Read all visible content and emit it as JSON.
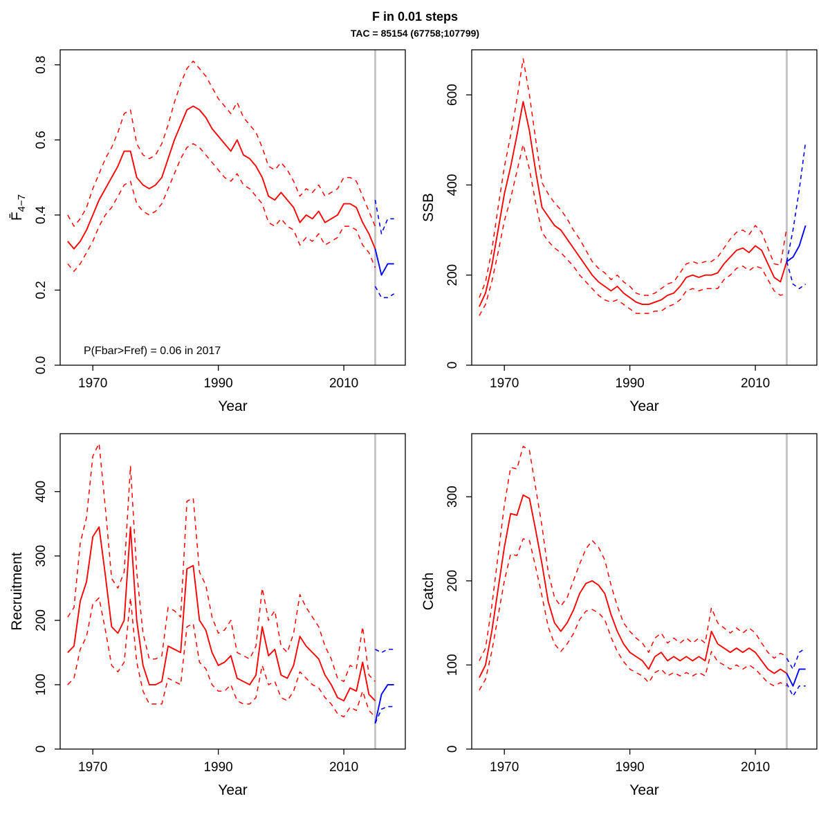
{
  "header": {
    "title": "F in 0.01 steps",
    "subtitle": "TAC = 85154 (67758;107799)"
  },
  "colors": {
    "estimate": "#ff0000",
    "forecast": "#0000ff",
    "vline": "#c6c6c6",
    "axis": "#000000"
  },
  "chart_data": [
    {
      "type": "line",
      "key": "fbar",
      "ylabel": "F̄",
      "ylabel_sub": "4−7",
      "xlabel": "Year",
      "xlim": [
        1964.8,
        2019.8
      ],
      "ylim": [
        0,
        0.84
      ],
      "xticks": [
        1970,
        1990,
        2010
      ],
      "yticks": [
        0.0,
        0.2,
        0.4,
        0.6,
        0.8
      ],
      "yticklabels": [
        "0.0",
        "0.2",
        "0.4",
        "0.6",
        "0.8"
      ],
      "vline": 2015,
      "annotation": "P(Fbar>Fref) = 0.06  in 2017",
      "years": [
        1966,
        1967,
        1968,
        1969,
        1970,
        1971,
        1972,
        1973,
        1974,
        1975,
        1976,
        1977,
        1978,
        1979,
        1980,
        1981,
        1982,
        1983,
        1984,
        1985,
        1986,
        1987,
        1988,
        1989,
        1990,
        1991,
        1992,
        1993,
        1994,
        1995,
        1996,
        1997,
        1998,
        1999,
        2000,
        2001,
        2002,
        2003,
        2004,
        2005,
        2006,
        2007,
        2008,
        2009,
        2010,
        2011,
        2012,
        2013,
        2014,
        2015
      ],
      "mid": [
        0.33,
        0.31,
        0.33,
        0.36,
        0.4,
        0.44,
        0.47,
        0.5,
        0.53,
        0.57,
        0.57,
        0.5,
        0.48,
        0.47,
        0.48,
        0.5,
        0.55,
        0.6,
        0.64,
        0.68,
        0.69,
        0.68,
        0.66,
        0.63,
        0.61,
        0.59,
        0.57,
        0.6,
        0.56,
        0.55,
        0.53,
        0.5,
        0.45,
        0.44,
        0.46,
        0.44,
        0.42,
        0.38,
        0.4,
        0.39,
        0.41,
        0.38,
        0.39,
        0.4,
        0.43,
        0.43,
        0.42,
        0.38,
        0.35,
        0.31
      ],
      "hi": [
        0.4,
        0.37,
        0.39,
        0.42,
        0.47,
        0.51,
        0.55,
        0.58,
        0.62,
        0.67,
        0.68,
        0.59,
        0.56,
        0.55,
        0.56,
        0.59,
        0.64,
        0.7,
        0.75,
        0.79,
        0.81,
        0.79,
        0.77,
        0.74,
        0.71,
        0.69,
        0.67,
        0.7,
        0.66,
        0.64,
        0.62,
        0.58,
        0.53,
        0.52,
        0.54,
        0.52,
        0.49,
        0.45,
        0.47,
        0.46,
        0.48,
        0.45,
        0.46,
        0.47,
        0.5,
        0.5,
        0.49,
        0.45,
        0.41,
        0.37
      ],
      "lo": [
        0.27,
        0.25,
        0.27,
        0.3,
        0.33,
        0.37,
        0.4,
        0.42,
        0.45,
        0.48,
        0.49,
        0.43,
        0.41,
        0.4,
        0.41,
        0.43,
        0.47,
        0.51,
        0.55,
        0.58,
        0.59,
        0.58,
        0.56,
        0.54,
        0.52,
        0.5,
        0.49,
        0.51,
        0.48,
        0.47,
        0.45,
        0.43,
        0.38,
        0.37,
        0.39,
        0.37,
        0.36,
        0.32,
        0.34,
        0.33,
        0.35,
        0.32,
        0.33,
        0.34,
        0.37,
        0.37,
        0.36,
        0.32,
        0.3,
        0.26
      ],
      "proj_years": [
        2015,
        2016,
        2017,
        2018
      ],
      "proj_mid": [
        0.31,
        0.24,
        0.27,
        0.27
      ],
      "proj_hi": [
        0.44,
        0.35,
        0.39,
        0.39
      ],
      "proj_lo": [
        0.21,
        0.18,
        0.18,
        0.19
      ]
    },
    {
      "type": "line",
      "key": "ssb",
      "ylabel": "SSB",
      "xlabel": "Year",
      "xlim": [
        1964.8,
        2019.8
      ],
      "ylim": [
        0,
        700
      ],
      "xticks": [
        1970,
        1990,
        2010
      ],
      "yticks": [
        0,
        200,
        400,
        600
      ],
      "yticklabels": [
        "0",
        "200",
        "400",
        "600"
      ],
      "vline": 2015,
      "annotation": "",
      "years": [
        1966,
        1967,
        1968,
        1969,
        1970,
        1971,
        1972,
        1973,
        1974,
        1975,
        1976,
        1977,
        1978,
        1979,
        1980,
        1981,
        1982,
        1983,
        1984,
        1985,
        1986,
        1987,
        1988,
        1989,
        1990,
        1991,
        1992,
        1993,
        1994,
        1995,
        1996,
        1997,
        1998,
        1999,
        2000,
        2001,
        2002,
        2003,
        2004,
        2005,
        2006,
        2007,
        2008,
        2009,
        2010,
        2011,
        2012,
        2013,
        2014,
        2015
      ],
      "mid": [
        130,
        160,
        220,
        300,
        380,
        440,
        510,
        585,
        520,
        430,
        350,
        330,
        310,
        300,
        280,
        260,
        240,
        220,
        200,
        185,
        175,
        165,
        175,
        160,
        150,
        140,
        135,
        135,
        140,
        145,
        155,
        160,
        175,
        195,
        200,
        195,
        200,
        200,
        205,
        225,
        240,
        255,
        260,
        250,
        265,
        255,
        225,
        195,
        185,
        230
      ],
      "hi": [
        150,
        185,
        255,
        350,
        440,
        510,
        590,
        680,
        600,
        500,
        405,
        380,
        360,
        345,
        325,
        300,
        280,
        255,
        230,
        215,
        205,
        190,
        200,
        185,
        175,
        160,
        155,
        155,
        160,
        170,
        180,
        185,
        205,
        225,
        230,
        225,
        230,
        230,
        240,
        260,
        280,
        295,
        300,
        290,
        310,
        295,
        260,
        225,
        222,
        305
      ],
      "lo": [
        110,
        135,
        185,
        250,
        320,
        370,
        430,
        490,
        435,
        360,
        295,
        275,
        260,
        250,
        235,
        220,
        200,
        185,
        170,
        155,
        145,
        140,
        145,
        135,
        125,
        115,
        115,
        115,
        120,
        120,
        130,
        135,
        145,
        165,
        170,
        165,
        170,
        170,
        170,
        190,
        200,
        215,
        220,
        210,
        220,
        215,
        190,
        165,
        155,
        160
      ],
      "proj_years": [
        2015,
        2016,
        2017,
        2018
      ],
      "proj_mid": [
        230,
        240,
        265,
        310
      ],
      "proj_hi": [
        230,
        300,
        390,
        495
      ],
      "proj_lo": [
        230,
        180,
        170,
        180
      ]
    },
    {
      "type": "line",
      "key": "recruitment",
      "ylabel": "Recruitment",
      "xlabel": "Year",
      "xlim": [
        1964.8,
        2019.8
      ],
      "ylim": [
        0,
        490
      ],
      "xticks": [
        1970,
        1990,
        2010
      ],
      "yticks": [
        0,
        100,
        200,
        300,
        400
      ],
      "yticklabels": [
        "0",
        "100",
        "200",
        "300",
        "400"
      ],
      "vline": 2015,
      "annotation": "",
      "years": [
        1966,
        1967,
        1968,
        1969,
        1970,
        1971,
        1972,
        1973,
        1974,
        1975,
        1976,
        1977,
        1978,
        1979,
        1980,
        1981,
        1982,
        1983,
        1984,
        1985,
        1986,
        1987,
        1988,
        1989,
        1990,
        1991,
        1992,
        1993,
        1994,
        1995,
        1996,
        1997,
        1998,
        1999,
        2000,
        2001,
        2002,
        2003,
        2004,
        2005,
        2006,
        2007,
        2008,
        2009,
        2010,
        2011,
        2012,
        2013,
        2014,
        2015
      ],
      "mid": [
        150,
        160,
        230,
        260,
        330,
        345,
        270,
        190,
        180,
        200,
        345,
        200,
        130,
        100,
        100,
        105,
        160,
        155,
        150,
        280,
        285,
        200,
        185,
        150,
        130,
        135,
        145,
        110,
        105,
        100,
        115,
        190,
        145,
        155,
        115,
        110,
        130,
        175,
        160,
        150,
        140,
        115,
        100,
        80,
        75,
        95,
        90,
        135,
        85,
        75
      ],
      "hi": [
        205,
        220,
        320,
        360,
        455,
        475,
        375,
        265,
        250,
        275,
        440,
        275,
        180,
        140,
        140,
        145,
        220,
        215,
        205,
        385,
        390,
        275,
        255,
        205,
        180,
        185,
        200,
        150,
        145,
        140,
        160,
        250,
        200,
        215,
        160,
        150,
        180,
        240,
        220,
        205,
        190,
        160,
        140,
        110,
        105,
        130,
        125,
        190,
        115,
        105
      ],
      "lo": [
        100,
        110,
        155,
        175,
        225,
        235,
        185,
        130,
        120,
        135,
        235,
        135,
        90,
        70,
        70,
        70,
        110,
        105,
        100,
        190,
        195,
        135,
        125,
        100,
        90,
        90,
        100,
        75,
        70,
        70,
        80,
        130,
        100,
        105,
        80,
        75,
        90,
        120,
        110,
        100,
        95,
        80,
        70,
        55,
        50,
        65,
        60,
        90,
        60,
        50
      ],
      "proj_years": [
        2015,
        2016,
        2017,
        2018
      ],
      "proj_mid": [
        40,
        85,
        100,
        100
      ],
      "proj_hi": [
        155,
        150,
        155,
        155
      ],
      "proj_lo": [
        40,
        62,
        66,
        66
      ]
    },
    {
      "type": "line",
      "key": "catch",
      "ylabel": "Catch",
      "xlabel": "Year",
      "xlim": [
        1964.8,
        2019.8
      ],
      "ylim": [
        0,
        375
      ],
      "xticks": [
        1970,
        1990,
        2010
      ],
      "yticks": [
        0,
        100,
        200,
        300
      ],
      "yticklabels": [
        "0",
        "100",
        "200",
        "300"
      ],
      "vline": 2015,
      "annotation": "",
      "years": [
        1966,
        1967,
        1968,
        1969,
        1970,
        1971,
        1972,
        1973,
        1974,
        1975,
        1976,
        1977,
        1978,
        1979,
        1980,
        1981,
        1982,
        1983,
        1984,
        1985,
        1986,
        1987,
        1988,
        1989,
        1990,
        1991,
        1992,
        1993,
        1994,
        1995,
        1996,
        1997,
        1998,
        1999,
        2000,
        2001,
        2002,
        2003,
        2004,
        2005,
        2006,
        2007,
        2008,
        2009,
        2010,
        2011,
        2012,
        2013,
        2014,
        2015
      ],
      "mid": [
        85,
        100,
        140,
        190,
        240,
        280,
        278,
        302,
        298,
        260,
        220,
        175,
        150,
        140,
        150,
        165,
        185,
        197,
        200,
        195,
        185,
        160,
        140,
        125,
        115,
        110,
        105,
        95,
        110,
        115,
        105,
        110,
        105,
        110,
        105,
        110,
        105,
        140,
        125,
        120,
        115,
        120,
        115,
        120,
        115,
        105,
        95,
        90,
        95,
        90
      ],
      "hi": [
        105,
        120,
        170,
        230,
        290,
        335,
        333,
        360,
        355,
        310,
        265,
        210,
        180,
        170,
        180,
        200,
        220,
        238,
        248,
        240,
        225,
        195,
        170,
        150,
        140,
        132,
        126,
        115,
        132,
        138,
        126,
        132,
        126,
        132,
        126,
        132,
        126,
        168,
        150,
        144,
        138,
        144,
        138,
        144,
        138,
        126,
        115,
        108,
        114,
        110
      ],
      "lo": [
        70,
        83,
        116,
        158,
        200,
        232,
        230,
        250,
        248,
        216,
        182,
        145,
        125,
        116,
        125,
        137,
        154,
        164,
        166,
        162,
        154,
        133,
        116,
        104,
        95,
        91,
        87,
        79,
        91,
        95,
        87,
        91,
        87,
        91,
        87,
        91,
        87,
        116,
        104,
        100,
        95,
        100,
        95,
        100,
        95,
        87,
        79,
        75,
        79,
        75
      ],
      "proj_years": [
        2015,
        2016,
        2017,
        2018
      ],
      "proj_mid": [
        90,
        75,
        95,
        95
      ],
      "proj_hi": [
        108,
        95,
        115,
        120
      ],
      "proj_lo": [
        78,
        63,
        75,
        75
      ]
    }
  ]
}
